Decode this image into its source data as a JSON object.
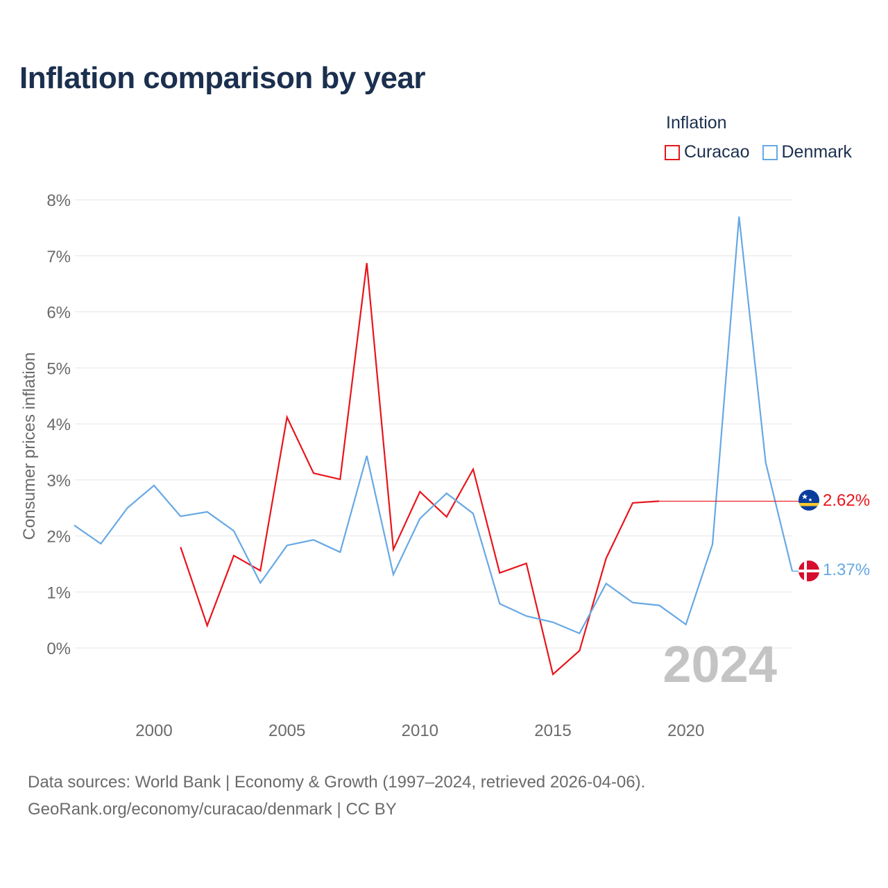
{
  "title": "Inflation comparison by year",
  "legend": {
    "title": "Inflation",
    "items": [
      {
        "label": "Curacao",
        "color": "#e8141b"
      },
      {
        "label": "Denmark",
        "color": "#66a8e4"
      }
    ]
  },
  "chart_data": {
    "type": "line",
    "title": "Inflation comparison by year",
    "xlabel": "",
    "ylabel": "Consumer prices inflation",
    "xlim": [
      1997,
      2024
    ],
    "ylim": [
      -1,
      8
    ],
    "y_ticks": [
      0,
      1,
      2,
      3,
      4,
      5,
      6,
      7,
      8
    ],
    "y_tick_labels": [
      "0%",
      "1%",
      "2%",
      "3%",
      "4%",
      "5%",
      "6%",
      "7%",
      "8%"
    ],
    "x_ticks": [
      2000,
      2005,
      2010,
      2015,
      2020
    ],
    "x_tick_labels": [
      "2000",
      "2005",
      "2010",
      "2015",
      "2020"
    ],
    "grid": true,
    "year_watermark": "2024",
    "series": [
      {
        "name": "Curacao",
        "color": "#e8141b",
        "x": [
          2001,
          2002,
          2003,
          2004,
          2005,
          2006,
          2007,
          2008,
          2009,
          2010,
          2011,
          2012,
          2013,
          2014,
          2015,
          2016,
          2017,
          2018,
          2019
        ],
        "values": [
          1.8,
          0.4,
          1.65,
          1.38,
          4.12,
          3.12,
          3.01,
          6.87,
          1.76,
          2.79,
          2.34,
          3.19,
          1.34,
          1.51,
          -0.47,
          -0.05,
          1.6,
          2.59,
          2.62
        ],
        "end_label": "2.62%",
        "end_value": 2.62
      },
      {
        "name": "Denmark",
        "color": "#66a8e4",
        "x": [
          1997,
          1998,
          1999,
          2000,
          2001,
          2002,
          2003,
          2004,
          2005,
          2006,
          2007,
          2008,
          2009,
          2010,
          2011,
          2012,
          2013,
          2014,
          2015,
          2016,
          2017,
          2018,
          2019,
          2020,
          2021,
          2022,
          2023,
          2024
        ],
        "values": [
          2.19,
          1.86,
          2.5,
          2.9,
          2.35,
          2.43,
          2.09,
          1.16,
          1.83,
          1.93,
          1.71,
          3.43,
          1.31,
          2.31,
          2.76,
          2.4,
          0.79,
          0.57,
          0.46,
          0.26,
          1.15,
          0.81,
          0.76,
          0.42,
          1.85,
          7.7,
          3.31,
          1.37
        ],
        "end_label": "1.37%",
        "end_value": 1.37
      }
    ]
  },
  "flags": [
    {
      "country": "Curacao",
      "icon": "curacao-flag-icon"
    },
    {
      "country": "Denmark",
      "icon": "denmark-flag-icon"
    }
  ],
  "source": {
    "line1": "Data sources: World Bank | Economy & Growth (1997–2024, retrieved 2026-04-06).",
    "line2": "GeoRank.org/economy/curacao/denmark | CC BY"
  }
}
